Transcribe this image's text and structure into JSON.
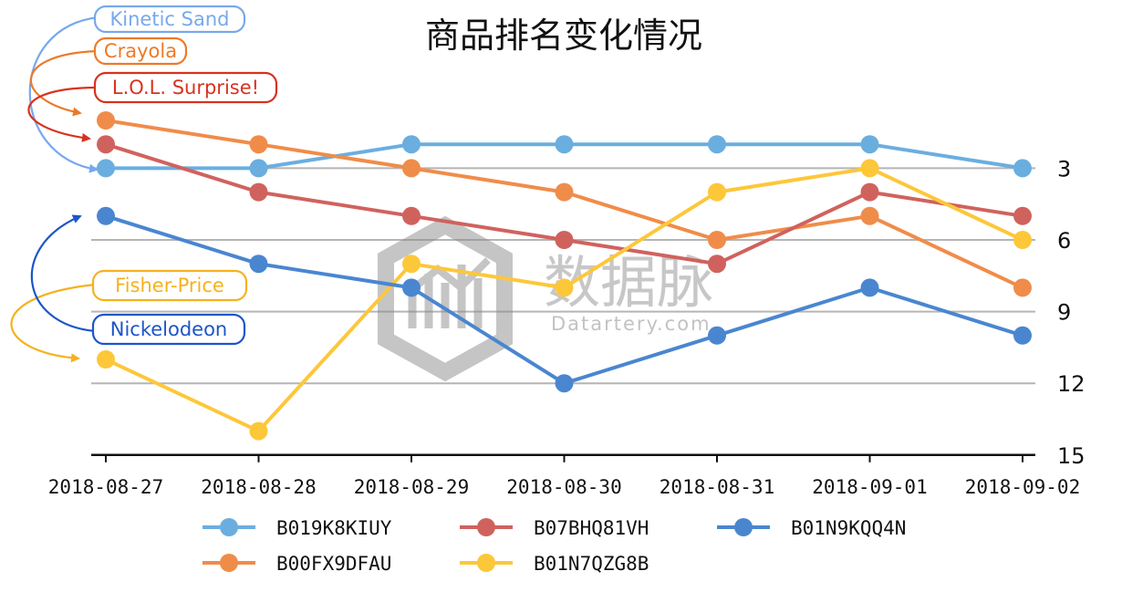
{
  "chart_data": {
    "type": "line",
    "title": "商品排名变化情况",
    "categories": [
      "2018-08-27",
      "2018-08-28",
      "2018-08-29",
      "2018-08-30",
      "2018-08-31",
      "2018-09-01",
      "2018-09-02"
    ],
    "y_axis": {
      "position": "right",
      "inverted": true,
      "range": [
        1,
        15
      ],
      "ticks": [
        3,
        6,
        9,
        12,
        15
      ]
    },
    "grid": "horizontal",
    "legend_placement": "bottom",
    "series": [
      {
        "name": "B019K8KIUY",
        "color": "#6aaee0",
        "values": [
          3,
          3,
          2,
          2,
          2,
          2,
          3
        ]
      },
      {
        "name": "B07BHQ81VH",
        "color": "#d0625e",
        "values": [
          2,
          4,
          5,
          6,
          7,
          4,
          5
        ]
      },
      {
        "name": "B01N9KQQ4N",
        "color": "#4a86d0",
        "values": [
          5,
          7,
          8,
          12,
          10,
          8,
          10
        ]
      },
      {
        "name": "B00FX9DFAU",
        "color": "#f08c4a",
        "values": [
          1,
          2,
          3,
          4,
          6,
          5,
          8
        ]
      },
      {
        "name": "B01N7QZG8B",
        "color": "#fdc73a",
        "values": [
          11,
          14,
          7,
          8,
          4,
          3,
          6
        ]
      }
    ],
    "annotations": [
      {
        "text": "Kinetic Sand",
        "color": "#78a8ec",
        "series": "B019K8KIUY"
      },
      {
        "text": "Crayola",
        "color": "#ec7a2a",
        "series": "B00FX9DFAU"
      },
      {
        "text": "L.O.L. Surprise!",
        "color": "#d8321e",
        "series": "B07BHQ81VH"
      },
      {
        "text": "Fisher-Price",
        "color": "#f5b11e",
        "series": "B01N7QZG8B"
      },
      {
        "text": "Nickelodeon",
        "color": "#1c56c8",
        "series": "B01N9KQQ4N"
      }
    ]
  },
  "watermark": {
    "main": "数据脉",
    "sub": "Datartery.com"
  }
}
